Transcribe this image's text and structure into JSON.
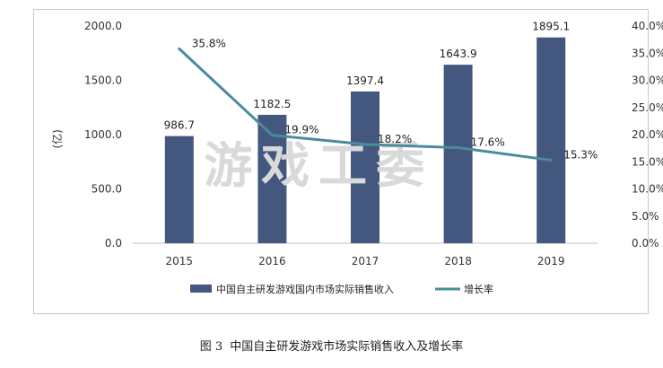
{
  "chart_data": {
    "type": "bar+line",
    "categories": [
      "2015",
      "2016",
      "2017",
      "2018",
      "2019"
    ],
    "series": [
      {
        "name": "中国自主研发游戏国内市场实际销售收入",
        "type": "bar",
        "axis": "left",
        "values": [
          986.7,
          1182.5,
          1397.4,
          1643.9,
          1895.1
        ],
        "labels": [
          "986.7",
          "1182.5",
          "1397.4",
          "1643.9",
          "1895.1"
        ]
      },
      {
        "name": "增长率",
        "type": "line",
        "axis": "right",
        "values": [
          35.8,
          19.9,
          18.2,
          17.6,
          15.3
        ],
        "labels": [
          "35.8%",
          "19.9%",
          "18.2%",
          "17.6%",
          "15.3%"
        ]
      }
    ],
    "ylabel": "(亿)",
    "ylim": [
      0,
      2000
    ],
    "yticks": [
      "0.0",
      "500.0",
      "1000.0",
      "1500.0",
      "2000.0"
    ],
    "y2lim": [
      0,
      40
    ],
    "y2ticks": [
      "0.0%",
      "5.0%",
      "10.0%",
      "15.0%",
      "20.0%",
      "25.0%",
      "30.0%",
      "35.0%",
      "40.0%"
    ],
    "legend": "bottom",
    "colors": {
      "bar": "#44577f",
      "line": "#4a8c9c",
      "axis": "#bfbfbf"
    }
  },
  "watermark": "游戏工委",
  "caption": {
    "label": "图 3",
    "text": "中国自主研发游戏市场实际销售收入及增长率"
  }
}
